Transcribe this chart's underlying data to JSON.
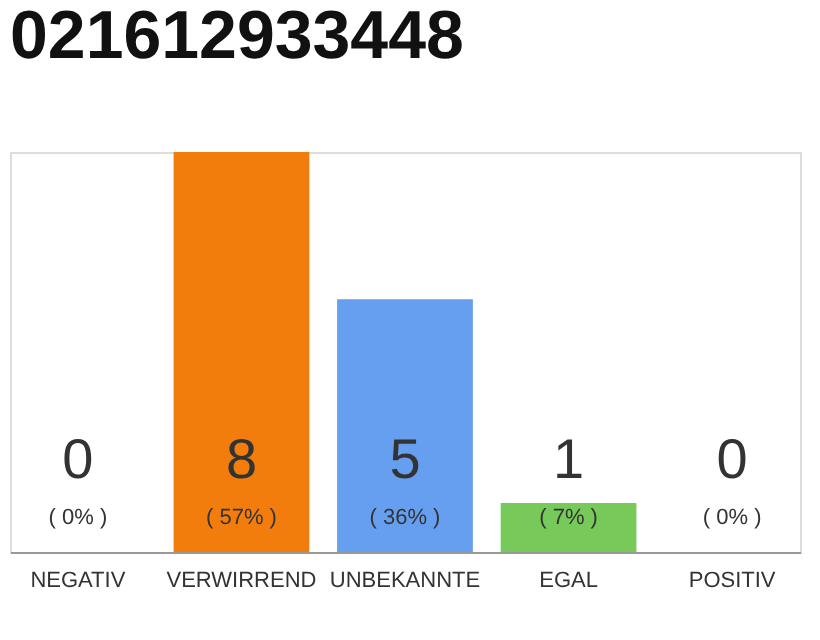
{
  "chart_data": {
    "type": "bar",
    "title": "021612933448",
    "categories": [
      "NEGATIV",
      "VERWIRREND",
      "UNBEKANNTE",
      "EGAL",
      "POSITIV"
    ],
    "values": [
      0,
      57,
      36,
      7,
      0
    ],
    "colors": [
      "#eeeeee",
      "#f27d0c",
      "#669ef0",
      "#77c95a",
      "#eeeeee"
    ],
    "value_labels": [
      "( 0% )",
      "( 57% )",
      "( 36% )",
      "( 7% )",
      "( 0% )"
    ],
    "annotations": [
      "0",
      "8",
      "5",
      "1",
      "0"
    ],
    "grid": false
  }
}
